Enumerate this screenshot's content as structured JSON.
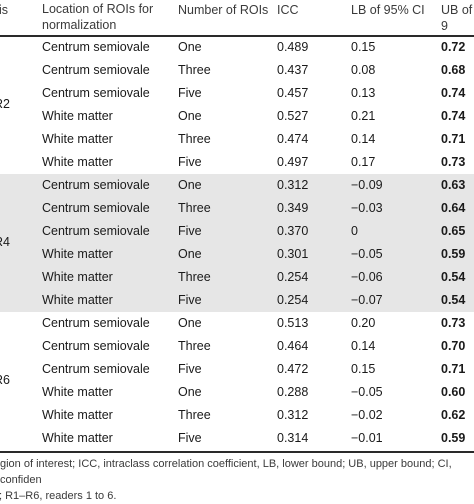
{
  "header": {
    "col_reader": "is",
    "col_location": "Location of ROIs for\nnormalization",
    "col_number": "Number of ROIs",
    "col_icc": "ICC",
    "col_lb": "LB of 95% CI",
    "col_ub": "UB of 9"
  },
  "groups": [
    {
      "label": "R2",
      "shaded": false,
      "rows": [
        {
          "location": "Centrum semiovale",
          "number": "One",
          "icc": "0.489",
          "lb": "0.15",
          "ub": "0.72"
        },
        {
          "location": "Centrum semiovale",
          "number": "Three",
          "icc": "0.437",
          "lb": "0.08",
          "ub": "0.68"
        },
        {
          "location": "Centrum semiovale",
          "number": "Five",
          "icc": "0.457",
          "lb": "0.13",
          "ub": "0.74"
        },
        {
          "location": "White matter",
          "number": "One",
          "icc": "0.527",
          "lb": "0.21",
          "ub": "0.74"
        },
        {
          "location": "White matter",
          "number": "Three",
          "icc": "0.474",
          "lb": "0.14",
          "ub": "0.71"
        },
        {
          "location": "White matter",
          "number": "Five",
          "icc": "0.497",
          "lb": "0.17",
          "ub": "0.73"
        }
      ]
    },
    {
      "label": "R4",
      "shaded": true,
      "rows": [
        {
          "location": "Centrum semiovale",
          "number": "One",
          "icc": "0.312",
          "lb": "−0.09",
          "ub": "0.63"
        },
        {
          "location": "Centrum semiovale",
          "number": "Three",
          "icc": "0.349",
          "lb": "−0.03",
          "ub": "0.64"
        },
        {
          "location": "Centrum semiovale",
          "number": "Five",
          "icc": "0.370",
          "lb": "0",
          "ub": "0.65"
        },
        {
          "location": "White matter",
          "number": "One",
          "icc": "0.301",
          "lb": "−0.05",
          "ub": "0.59"
        },
        {
          "location": "White matter",
          "number": "Three",
          "icc": "0.254",
          "lb": "−0.06",
          "ub": "0.54"
        },
        {
          "location": "White matter",
          "number": "Five",
          "icc": "0.254",
          "lb": "−0.07",
          "ub": "0.54"
        }
      ]
    },
    {
      "label": "R6",
      "shaded": false,
      "rows": [
        {
          "location": "Centrum semiovale",
          "number": "One",
          "icc": "0.513",
          "lb": "0.20",
          "ub": "0.73"
        },
        {
          "location": "Centrum semiovale",
          "number": "Three",
          "icc": "0.464",
          "lb": "0.14",
          "ub": "0.70"
        },
        {
          "location": "Centrum semiovale",
          "number": "Five",
          "icc": "0.472",
          "lb": "0.15",
          "ub": "0.71"
        },
        {
          "location": "White matter",
          "number": "One",
          "icc": "0.288",
          "lb": "−0.05",
          "ub": "0.60"
        },
        {
          "location": "White matter",
          "number": "Three",
          "icc": "0.312",
          "lb": "−0.02",
          "ub": "0.62"
        },
        {
          "location": "White matter",
          "number": "Five",
          "icc": "0.314",
          "lb": "−0.01",
          "ub": "0.59"
        }
      ]
    }
  ],
  "footnote": {
    "line1": "gion of interest; ICC, intraclass correlation coefficient, LB, lower bound; UB, upper bound; CI, confiden",
    "line2": "; R1–R6, readers 1 to 6."
  },
  "colors": {
    "shade": "#e6e6e6",
    "rule": "#2a2a2a"
  }
}
